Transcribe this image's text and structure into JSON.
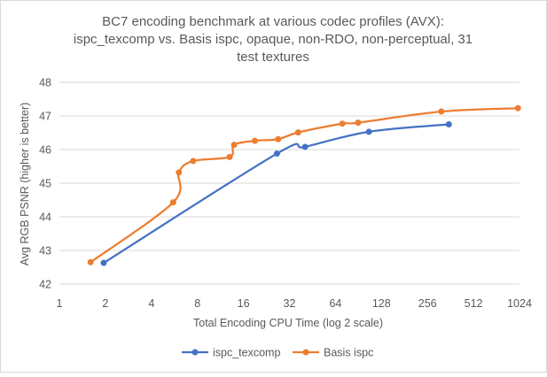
{
  "chart_data": {
    "type": "line",
    "title_lines": [
      "BC7 encoding benchmark at various codec profiles (AVX):",
      "ispc_texcomp vs. Basis ispc, opaque, non-RDO, non-perceptual, 31",
      "test textures"
    ],
    "xlabel": "Total Encoding CPU Time (log 2 scale)",
    "ylabel": "Avg RGB PSNR (higher is better)",
    "x_scale": "log2",
    "xlim": [
      1,
      1024
    ],
    "ylim": [
      42,
      48
    ],
    "x_ticks": [
      1,
      2,
      4,
      8,
      16,
      32,
      64,
      128,
      256,
      512,
      1024
    ],
    "x_tick_labels": [
      "1",
      "2",
      "4",
      "8",
      "16",
      "32",
      "64",
      "128",
      "256",
      "512",
      "1024"
    ],
    "y_ticks": [
      42,
      43,
      44,
      45,
      46,
      47,
      48
    ],
    "y_tick_labels": [
      "42",
      "43",
      "44",
      "45",
      "46",
      "47",
      "48"
    ],
    "grid": "horizontal",
    "legend_position": "bottom",
    "series": [
      {
        "name": "ispc_texcomp",
        "color": "#4472C4",
        "x": [
          1.95,
          26.5,
          40.5,
          106,
          353
        ],
        "y": [
          42.63,
          45.88,
          46.08,
          46.53,
          46.75
        ]
      },
      {
        "name": "Basis ispc",
        "color": "#ED7D31",
        "x": [
          1.6,
          5.55,
          6.05,
          7.5,
          13.0,
          13.9,
          19.0,
          27.0,
          36.5,
          71.0,
          90.0,
          315,
          1000
        ],
        "y": [
          42.65,
          44.43,
          45.32,
          45.66,
          45.78,
          46.14,
          46.26,
          46.31,
          46.51,
          46.77,
          46.8,
          47.13,
          47.23
        ]
      }
    ]
  }
}
